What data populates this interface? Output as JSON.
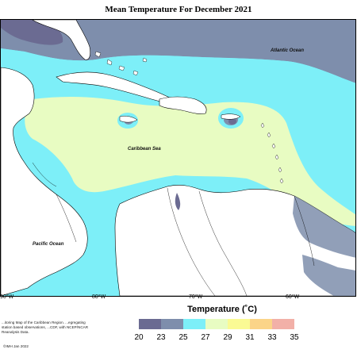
{
  "title": "Mean Temperature For December 2021",
  "map_labels": {
    "atlantic": "Atlantic Ocean",
    "caribbean": "Caribbean Sea",
    "pacific": "Pacific Ocean"
  },
  "longitude_ticks": [
    "90°W",
    "80°W",
    "70°W",
    "60°W"
  ],
  "legend": {
    "title": "Temperature (˚C)",
    "colors": [
      "#6b6b92",
      "#7e8eac",
      "#7deff8",
      "#e8fcc2",
      "#fafa94",
      "#fbd488",
      "#f2b0a8"
    ],
    "labels": [
      "20",
      "23",
      "25",
      "27",
      "29",
      "31",
      "33",
      "35"
    ]
  },
  "credit": "...itoring Map of the Caribbean Region. ...egregating station based observations, ...CDF, with NCEP/NCAR Reanalysis Data.",
  "copyright": "©IMH Jan 2022",
  "colors": {
    "land": "#ffffff",
    "coast": "#000000",
    "dark_band": "#6b6b92",
    "mid_band": "#7e8eac",
    "cyan_band": "#7deff8",
    "yellowgreen_band": "#e8fcc2"
  }
}
